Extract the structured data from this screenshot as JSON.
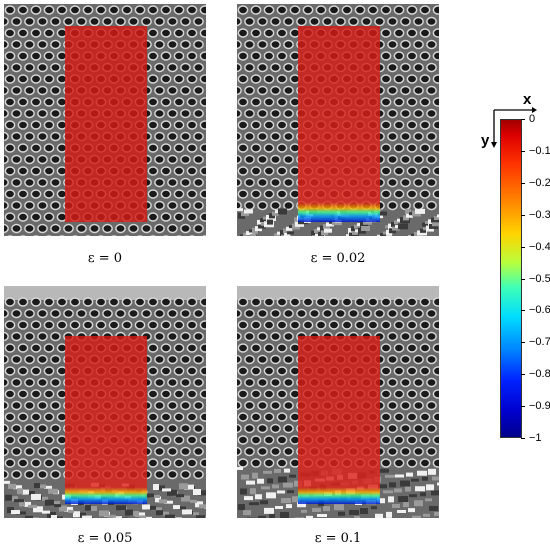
{
  "panels": [
    {
      "caption": "ε = 0",
      "strain": 0,
      "crush_depth": 0.0
    },
    {
      "caption": "ε = 0.02",
      "strain": 0.02,
      "crush_depth": 0.12
    },
    {
      "caption": "ε = 0.05",
      "strain": 0.05,
      "crush_depth": 0.16
    },
    {
      "caption": "ε = 0.1",
      "strain": 0.1,
      "crush_depth": 0.22
    }
  ],
  "colorbar": {
    "ticks": [
      "0",
      "−0.1",
      "−0.2",
      "−0.3",
      "−0.4",
      "−0.5",
      "−0.6",
      "−0.7",
      "−0.8",
      "−0.9",
      "−1"
    ],
    "min": -1,
    "max": 0
  },
  "axes": {
    "x_label": "x",
    "y_label": "y"
  },
  "colors": {
    "overlay_red": "#d41a14",
    "frame_bg": "#6a6a6a",
    "plate": "#b8b8b8"
  }
}
